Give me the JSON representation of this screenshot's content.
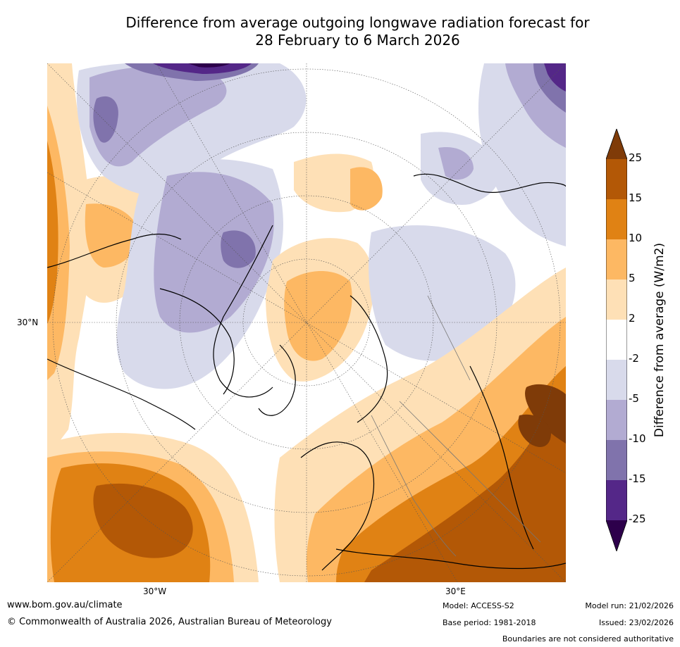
{
  "title": {
    "line1": "Difference from average outgoing longwave radiation forecast for",
    "line2": "28 February to 6 March 2026"
  },
  "axes": {
    "lat_label": "30°N",
    "lon_west_label": "30°W",
    "lon_east_label": "30°E"
  },
  "colorbar": {
    "title": "Difference from average (W/m2)",
    "ticks": [
      "25",
      "15",
      "10",
      "5",
      "2",
      "-2",
      "-5",
      "-10",
      "-15",
      "-25"
    ],
    "colors": {
      "above_25": "#7f3b08",
      "15_25": "#b35806",
      "10_15": "#e08214",
      "5_10": "#fdb863",
      "2_5": "#fee0b6",
      "neutral": "#ffffff",
      "m2_m5": "#d8daeb",
      "m5_m10": "#b2abd2",
      "m10_m15": "#8073ac",
      "m15_m25": "#542788",
      "below_m25": "#2d004b"
    }
  },
  "footer": {
    "website": "www.bom.gov.au/climate",
    "copyright": "© Commonwealth of Australia 2026, Australian Bureau of Meteorology",
    "model": "Model: ACCESS-S2",
    "base_period": "Base period: 1981-2018",
    "model_run": "Model run: 21/02/2026",
    "issued": "Issued: 23/02/2026",
    "disclaimer": "Boundaries are not considered authoritative"
  }
}
